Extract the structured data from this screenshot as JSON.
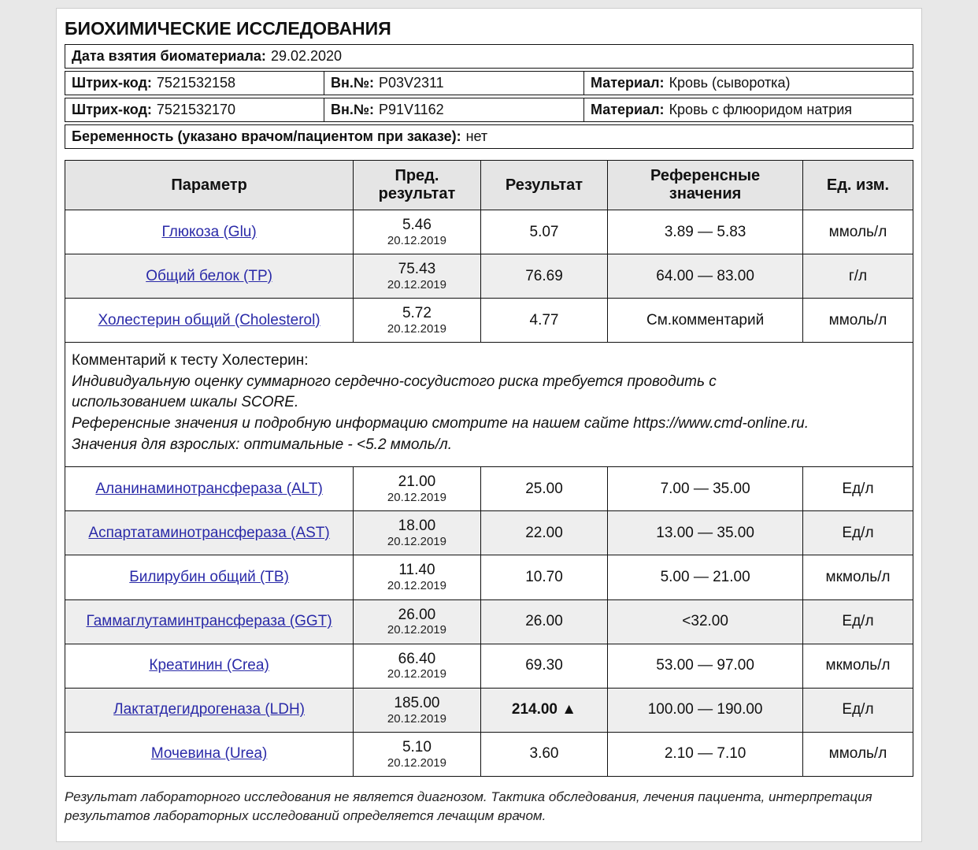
{
  "section_title": "БИОХИМИЧЕСКИЕ ИССЛЕДОВАНИЯ",
  "meta": {
    "date_label": "Дата взятия биоматериала:",
    "date_value": "29.02.2020",
    "barcode_label": "Штрих-код:",
    "vn_label": "Вн.№:",
    "material_label": "Материал:",
    "rows": [
      {
        "barcode": "7521532158",
        "vn": "P03V2311",
        "material": "Кровь (сыворотка)"
      },
      {
        "barcode": "7521532170",
        "vn": "P91V1162",
        "material": "Кровь с флюоридом натрия"
      }
    ],
    "pregnancy_label": "Беременность (указано врачом/пациентом при заказе):",
    "pregnancy_value": "нет"
  },
  "columns": {
    "param": "Параметр",
    "prev": "Пред. результат",
    "result": "Результат",
    "ref": "Референсные значения",
    "unit": "Ед. изм."
  },
  "rows": [
    {
      "param": "Глюкоза (Glu)",
      "prev_val": "5.46",
      "prev_date": "20.12.2019",
      "result": "5.07",
      "ref": "3.89 — 5.83",
      "unit": "ммоль/л"
    },
    {
      "param": "Общий белок (TP)",
      "prev_val": "75.43",
      "prev_date": "20.12.2019",
      "result": "76.69",
      "ref": "64.00 — 83.00",
      "unit": "г/л"
    },
    {
      "param": "Холестерин общий (Cholesterol)",
      "prev_val": "5.72",
      "prev_date": "20.12.2019",
      "result": "4.77",
      "ref": "См.комментарий",
      "unit": "ммоль/л"
    }
  ],
  "comment": {
    "title": "Комментарий к тесту Холестерин:",
    "l1": "Индивидуальную оценку суммарного сердечно-сосудистого риска требуется проводить с",
    "l2": " использованием шкалы SCORE.",
    "l3": "Референсные значения и подробную информацию смотрите на нашем сайте https://www.cmd-online.ru.",
    "l4": "Значения для взрослых: оптимальные - <5.2 ммоль/л."
  },
  "rows2": [
    {
      "param": "Аланинаминотрансфераза (ALT)",
      "prev_val": "21.00",
      "prev_date": "20.12.2019",
      "result": "25.00",
      "ref": "7.00 — 35.00",
      "unit": "Ед/л"
    },
    {
      "param": "Аспартатаминотрансфераза (AST)",
      "prev_val": "18.00",
      "prev_date": "20.12.2019",
      "result": "22.00",
      "ref": "13.00 — 35.00",
      "unit": "Ед/л"
    },
    {
      "param": "Билирубин общий (TB)",
      "prev_val": "11.40",
      "prev_date": "20.12.2019",
      "result": "10.70",
      "ref": "5.00 — 21.00",
      "unit": "мкмоль/л"
    },
    {
      "param": "Гаммаглутаминтрансфераза (GGT)",
      "prev_val": "26.00",
      "prev_date": "20.12.2019",
      "result": "26.00",
      "ref": "<32.00",
      "unit": "Ед/л"
    },
    {
      "param": "Креатинин (Crea)",
      "prev_val": "66.40",
      "prev_date": "20.12.2019",
      "result": "69.30",
      "ref": "53.00 — 97.00",
      "unit": "мкмоль/л"
    },
    {
      "param": "Лактатдегидрогеназа (LDH)",
      "prev_val": "185.00",
      "prev_date": "20.12.2019",
      "result": "214.00 ▲",
      "result_bold": true,
      "ref": "100.00 — 190.00",
      "unit": "Ед/л"
    },
    {
      "param": "Мочевина (Urea)",
      "prev_val": "5.10",
      "prev_date": "20.12.2019",
      "result": "3.60",
      "ref": "2.10 — 7.10",
      "unit": "ммоль/л"
    }
  ],
  "footnote": "Результат лабораторного исследования не является диагнозом. Тактика обследования, лечения пациента, интерпретация результатов лабораторных исследований определяется лечащим врачом."
}
